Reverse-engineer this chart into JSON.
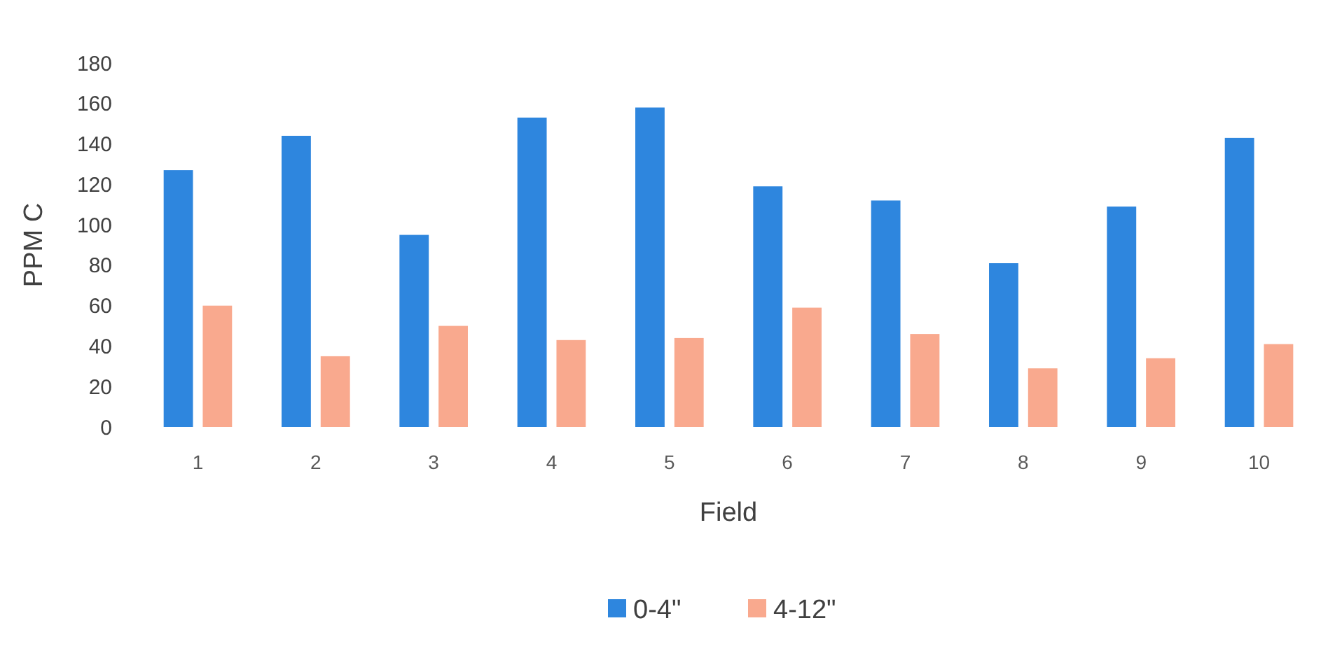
{
  "chart_data": {
    "type": "bar",
    "xlabel": "Field",
    "ylabel": "PPM C",
    "categories": [
      "1",
      "2",
      "3",
      "4",
      "5",
      "6",
      "7",
      "8",
      "9",
      "10"
    ],
    "series": [
      {
        "name": "0-4\"",
        "color": "#2e86de",
        "values": [
          127,
          144,
          95,
          153,
          158,
          119,
          112,
          81,
          109,
          143
        ]
      },
      {
        "name": "4-12\"",
        "color": "#f9a98e",
        "values": [
          60,
          35,
          50,
          43,
          44,
          59,
          46,
          29,
          34,
          41
        ]
      }
    ],
    "ylim": [
      0,
      180
    ],
    "yticks": [
      0,
      20,
      40,
      60,
      80,
      100,
      120,
      140,
      160,
      180
    ],
    "grid": false,
    "legend": "bottom"
  }
}
